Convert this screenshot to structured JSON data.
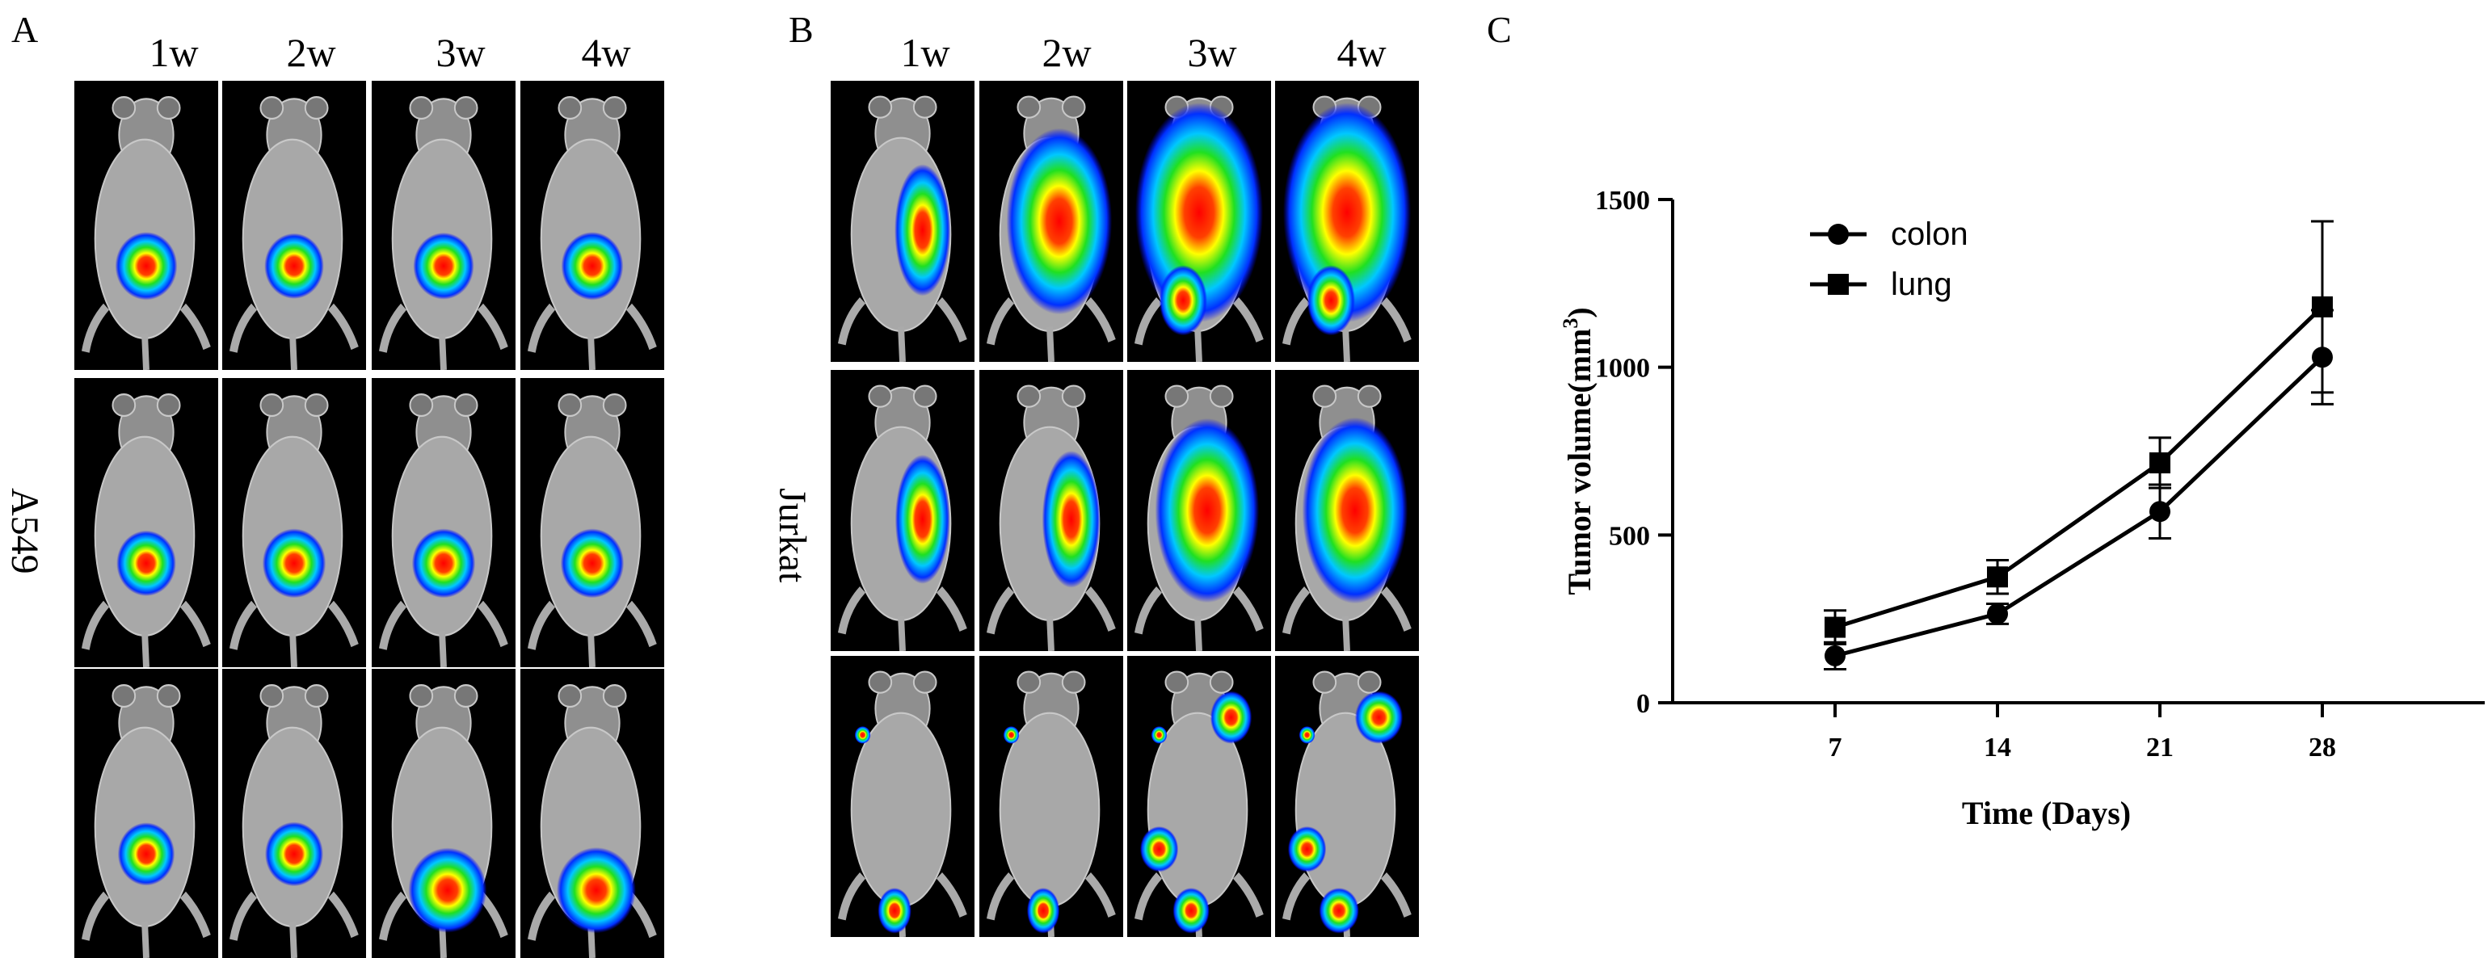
{
  "figure": {
    "panel_a": {
      "letter": "A",
      "row_label": "A549",
      "weeks": [
        "1w",
        "2w",
        "3w",
        "4w"
      ],
      "tiles": [
        [
          {
            "blob": "round",
            "level": 0.55
          },
          {
            "blob": "round",
            "level": 0.45
          },
          {
            "blob": "round",
            "level": 0.5
          },
          {
            "blob": "round",
            "level": 0.55
          }
        ],
        [
          {
            "blob": "round",
            "level": 0.45
          },
          {
            "blob": "round",
            "level": 0.6
          },
          {
            "blob": "round",
            "level": 0.6
          },
          {
            "blob": "round",
            "level": 0.6
          }
        ],
        [
          {
            "blob": "round",
            "level": 0.35
          },
          {
            "blob": "round",
            "level": 0.4
          },
          {
            "blob": "lower",
            "level": 0.7
          },
          {
            "blob": "lower",
            "level": 0.75
          }
        ]
      ]
    },
    "panel_b": {
      "letter": "B",
      "row_label": "Jurkat",
      "weeks": [
        "1w",
        "2w",
        "3w",
        "4w"
      ],
      "tiles": [
        [
          {
            "blob": "side",
            "level": 0.5
          },
          {
            "blob": "wide",
            "level": 0.8
          },
          {
            "blob": "spread",
            "level": 0.9
          },
          {
            "blob": "spread",
            "level": 1.0
          }
        ],
        [
          {
            "blob": "side",
            "level": 0.45
          },
          {
            "blob": "side",
            "level": 0.6
          },
          {
            "blob": "wide",
            "level": 0.75
          },
          {
            "blob": "wide",
            "level": 0.8
          }
        ],
        [
          {
            "blob": "spots",
            "level": 0.3
          },
          {
            "blob": "spots",
            "level": 0.25
          },
          {
            "blob": "spots",
            "level": 0.5
          },
          {
            "blob": "spots",
            "level": 0.7
          }
        ]
      ]
    },
    "panel_c": {
      "letter": "C"
    }
  },
  "chart_data": {
    "type": "line",
    "x": [
      7,
      14,
      21,
      28
    ],
    "xlabel": "Time (Days)",
    "ylabel": "Tumor volume(mm",
    "ylabel_sup": "3",
    "ylabel_end": ")",
    "xlim": [
      0,
      35
    ],
    "ylim": [
      0,
      1500
    ],
    "yticks": [
      "0",
      "500",
      "1000",
      "1500"
    ],
    "xticks": [
      "7",
      "14",
      "21",
      "28"
    ],
    "grid": false,
    "legend": "top-left",
    "series": [
      {
        "name": "colon",
        "marker": "circle",
        "values": [
          140,
          265,
          570,
          1030
        ],
        "errors": [
          40,
          30,
          80,
          140
        ]
      },
      {
        "name": "lung",
        "marker": "square",
        "values": [
          225,
          375,
          715,
          1180
        ],
        "errors": [
          50,
          50,
          75,
          255
        ]
      }
    ]
  }
}
